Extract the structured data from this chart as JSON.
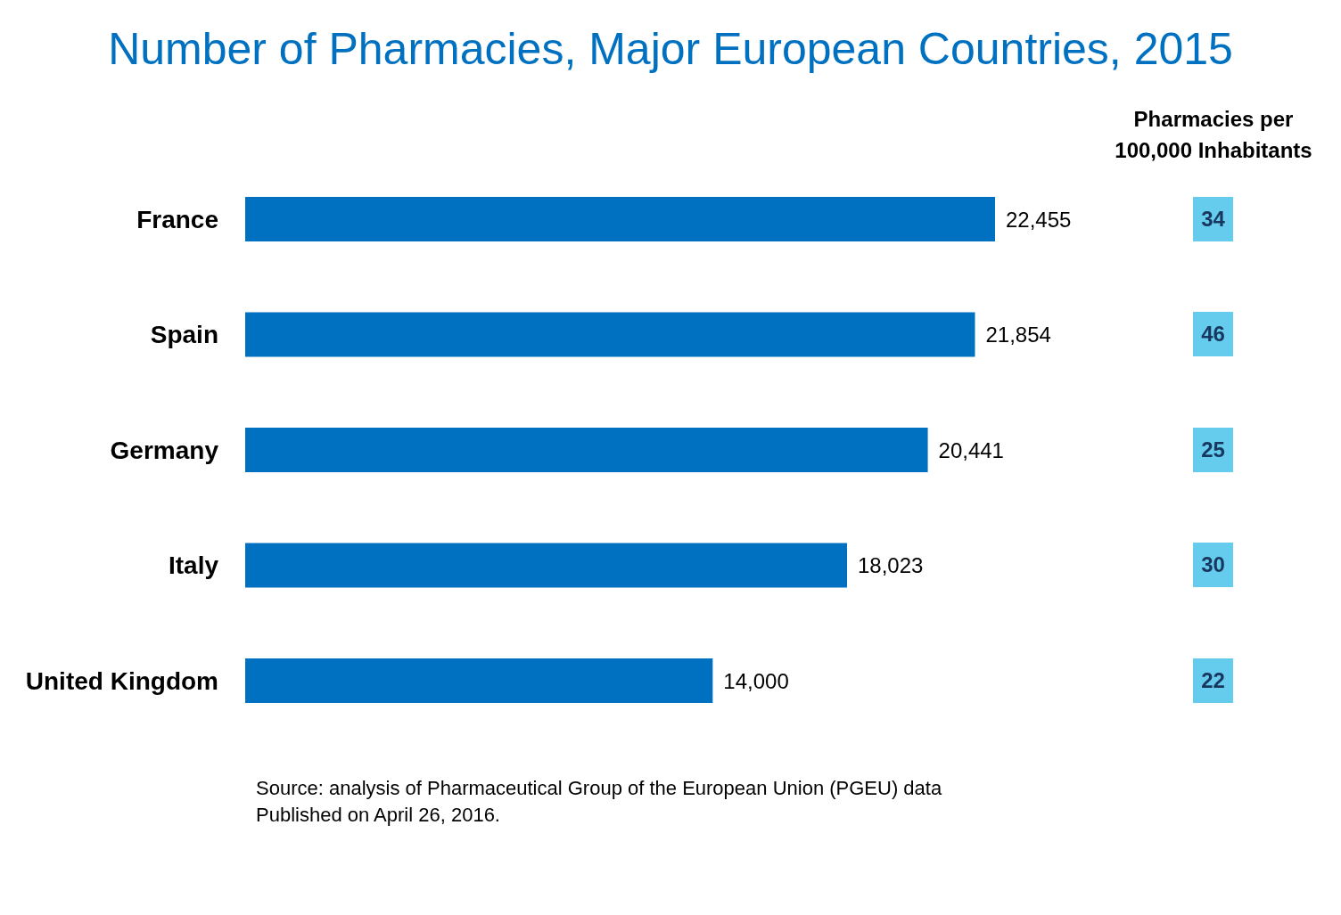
{
  "chart_data": [
    {
      "type": "bar",
      "title": "Number of Pharmacies, Major European Countries, 2015",
      "orientation": "horizontal",
      "categories": [
        "France",
        "Spain",
        "Germany",
        "Italy",
        "United Kingdom"
      ],
      "values": [
        22455,
        21854,
        20441,
        18023,
        14000
      ],
      "color": "#0070c0",
      "value_labels": [
        "22,455",
        "21,854",
        "20,441",
        "18,023",
        "14,000"
      ],
      "annotations": [
        "Source: analysis of Pharmaceutical Group of the European Union (PGEU) data",
        "Published on April 26, 2016."
      ]
    },
    {
      "type": "other",
      "title": "Pharmacies per 100,000 Inhabitants",
      "values": [
        34,
        46,
        25,
        30,
        22
      ],
      "color": "#66ccee",
      "data_labels": true
    }
  ]
}
